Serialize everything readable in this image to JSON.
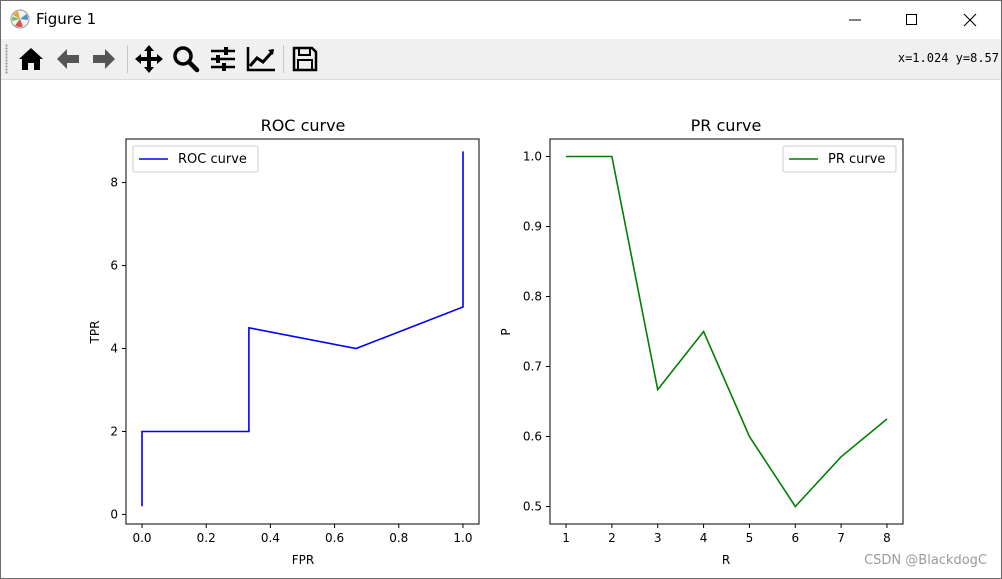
{
  "window": {
    "title": "Figure 1",
    "controls": [
      "minimize",
      "maximize",
      "close"
    ]
  },
  "toolbar": {
    "tools": [
      "home-icon",
      "back-arrow-icon",
      "forward-arrow-icon",
      "pan-move-icon",
      "zoom-magnifier-icon",
      "subplots-sliders-icon",
      "edit-axes-chart-icon",
      "save-floppy-icon"
    ],
    "coords": "x=1.024 y=8.57"
  },
  "watermark": "CSDN @BlackdogC",
  "colors": {
    "roc_line": "#0000ff",
    "pr_line": "#008000",
    "window_border": "#6b6b6b",
    "toolbar_bg": "#f0f0f0"
  },
  "chart_data": [
    {
      "type": "line",
      "title": "ROC curve",
      "xlabel": "FPR",
      "ylabel": "TPR",
      "xlim": [
        -0.05,
        1.05
      ],
      "ylim": [
        -0.23,
        9.05
      ],
      "xticks": [
        0.0,
        0.2,
        0.4,
        0.6,
        0.8,
        1.0
      ],
      "xtick_labels": [
        "0.0",
        "0.2",
        "0.4",
        "0.6",
        "0.8",
        "1.0"
      ],
      "yticks": [
        0,
        2,
        4,
        6,
        8
      ],
      "ytick_labels": [
        "0",
        "2",
        "4",
        "6",
        "8"
      ],
      "legend": "upper left",
      "series": [
        {
          "name": "ROC curve",
          "color": "#0000ff",
          "x": [
            0.0,
            0.0,
            0.333,
            0.333,
            0.667,
            1.0,
            1.0
          ],
          "y": [
            0.2,
            2.0,
            2.0,
            4.5,
            4.0,
            5.0,
            8.75
          ]
        }
      ]
    },
    {
      "type": "line",
      "title": "PR curve",
      "xlabel": "R",
      "ylabel": "P",
      "xlim": [
        0.65,
        8.35
      ],
      "ylim": [
        0.475,
        1.025
      ],
      "xticks": [
        1,
        2,
        3,
        4,
        5,
        6,
        7,
        8
      ],
      "xtick_labels": [
        "1",
        "2",
        "3",
        "4",
        "5",
        "6",
        "7",
        "8"
      ],
      "yticks": [
        0.5,
        0.6,
        0.7,
        0.8,
        0.9,
        1.0
      ],
      "ytick_labels": [
        "0.5",
        "0.6",
        "0.7",
        "0.8",
        "0.9",
        "1.0"
      ],
      "legend": "upper right",
      "series": [
        {
          "name": "PR curve",
          "color": "#008000",
          "x": [
            1,
            2,
            3,
            4,
            5,
            6,
            7,
            8
          ],
          "y": [
            1.0,
            1.0,
            0.667,
            0.75,
            0.6,
            0.5,
            0.571,
            0.625
          ]
        }
      ]
    }
  ]
}
